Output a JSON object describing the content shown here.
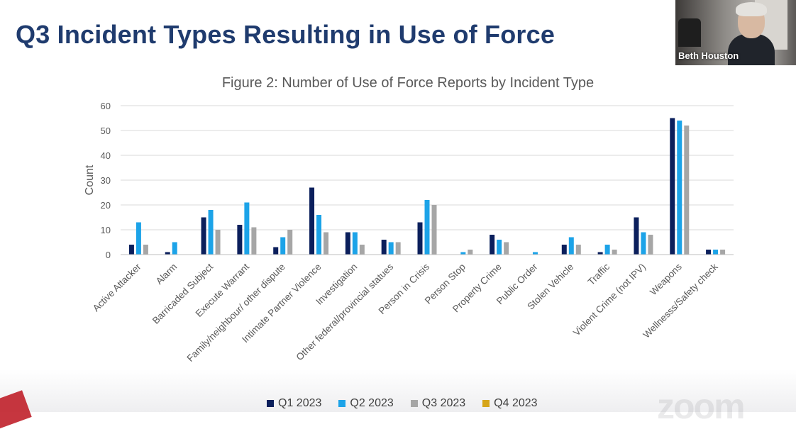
{
  "slide": {
    "title": "Q3 Incident Types Resulting in Use of Force"
  },
  "video": {
    "participant_name": "Beth Houston"
  },
  "watermark": {
    "text": "zoom"
  },
  "colors": {
    "title": "#1f3b6e",
    "q1": "#0b1f5c",
    "q2": "#1ca3e8",
    "q3": "#a6a6a6",
    "q4": "#d6a519",
    "grid": "#d9d9d9",
    "text": "#595959"
  },
  "chart_data": {
    "type": "bar",
    "title": "Figure 2: Number of Use of Force Reports by Incident Type",
    "xlabel": "",
    "ylabel": "Count",
    "ylim": [
      0,
      60
    ],
    "yticks": [
      0,
      10,
      20,
      30,
      40,
      50,
      60
    ],
    "grid": true,
    "legend_position": "bottom",
    "categories": [
      "Active Attacker",
      "Alarm",
      "Barricaded Subject",
      "Execute Warrant",
      "Family/neighbour/ other dispute",
      "Intimate Partner Violence",
      "Investigation",
      "Other federal/provincial statues",
      "Person in Crisis",
      "Person Stop",
      "Property Crime",
      "Public Order",
      "Stolen Vehicle",
      "Traffic",
      "Violent Crime (not IPV)",
      "Weapons",
      "Wellnesss/Safety check"
    ],
    "series": [
      {
        "name": "Q1 2023",
        "color": "#0b1f5c",
        "values": [
          4,
          1,
          15,
          12,
          3,
          27,
          9,
          6,
          13,
          0,
          8,
          0,
          4,
          1,
          15,
          55,
          2
        ]
      },
      {
        "name": "Q2 2023",
        "color": "#1ca3e8",
        "values": [
          13,
          5,
          18,
          21,
          7,
          16,
          9,
          5,
          22,
          1,
          6,
          1,
          7,
          4,
          9,
          54,
          2
        ]
      },
      {
        "name": "Q3 2023",
        "color": "#a6a6a6",
        "values": [
          4,
          0,
          10,
          11,
          10,
          9,
          4,
          5,
          20,
          2,
          5,
          0,
          4,
          2,
          8,
          52,
          2
        ]
      },
      {
        "name": "Q4 2023",
        "color": "#d6a519",
        "values": [
          0,
          0,
          0,
          0,
          0,
          0,
          0,
          0,
          0,
          0,
          0,
          0,
          0,
          0,
          0,
          0,
          0
        ]
      }
    ]
  }
}
